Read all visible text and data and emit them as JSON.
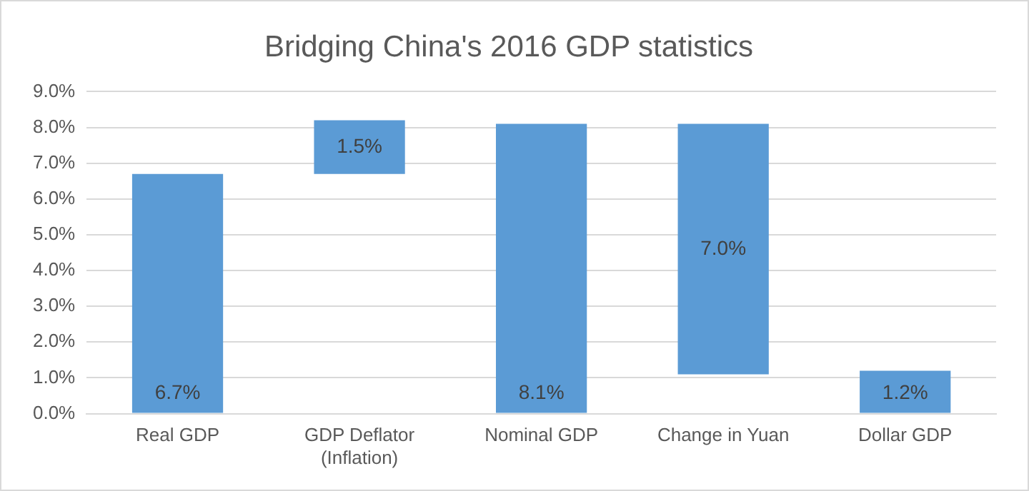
{
  "chart_data": {
    "type": "bar",
    "title": "Bridging China's 2016 GDP statistics",
    "categories": [
      "Real GDP",
      "GDP Deflator (Inflation)",
      "Nominal GDP",
      "Change in Yuan",
      "Dollar GDP"
    ],
    "values": [
      6.7,
      1.5,
      8.1,
      7.0,
      1.2
    ],
    "base": [
      0,
      6.7,
      0,
      1.1,
      0
    ],
    "color": "#5b9bd5",
    "value_labels": [
      "6.7%",
      "1.5%",
      "8.1%",
      "7.0%",
      "1.2%"
    ],
    "ylim": [
      0,
      9
    ],
    "yticks": [
      {
        "value": 0,
        "label": "0.0%"
      },
      {
        "value": 1,
        "label": "1.0%"
      },
      {
        "value": 2,
        "label": "2.0%"
      },
      {
        "value": 3,
        "label": "3.0%"
      },
      {
        "value": 4,
        "label": "4.0%"
      },
      {
        "value": 5,
        "label": "5.0%"
      },
      {
        "value": 6,
        "label": "6.0%"
      },
      {
        "value": 7,
        "label": "7.0%"
      },
      {
        "value": 8,
        "label": "8.0%"
      },
      {
        "value": 9,
        "label": "9.0%"
      }
    ],
    "grid": "y"
  }
}
